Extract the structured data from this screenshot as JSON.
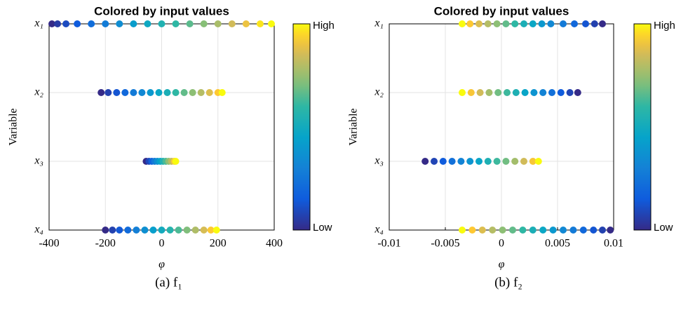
{
  "chart_data": [
    {
      "type": "scatter",
      "title": "Colored by input values",
      "xlabel": "φ",
      "ylabel": "Variable",
      "caption": "(a) f₁",
      "categories": [
        "x₁",
        "x₂",
        "x₃",
        "x₄"
      ],
      "xlim": [
        -400,
        400
      ],
      "xticks": [
        -400,
        -200,
        0,
        200,
        400
      ],
      "grid": true,
      "colormap": "parula",
      "colorbar_labels": [
        "High",
        "Low"
      ],
      "rows": [
        {
          "values": [
            -390,
            -370,
            -340,
            -300,
            -250,
            -200,
            -150,
            -100,
            -50,
            0,
            50,
            100,
            150,
            200,
            250,
            300,
            350,
            390
          ],
          "c": [
            0,
            0.05,
            0.1,
            0.15,
            0.22,
            0.28,
            0.35,
            0.42,
            0.48,
            0.55,
            0.6,
            0.66,
            0.72,
            0.78,
            0.85,
            0.9,
            0.97,
            1
          ]
        },
        {
          "values": [
            -215,
            -190,
            -160,
            -130,
            -100,
            -70,
            -40,
            -10,
            20,
            50,
            80,
            110,
            140,
            170,
            200,
            215
          ],
          "c": [
            0,
            0.07,
            0.13,
            0.2,
            0.27,
            0.33,
            0.4,
            0.47,
            0.53,
            0.6,
            0.67,
            0.73,
            0.8,
            0.87,
            0.93,
            1
          ]
        },
        {
          "values": [
            -55,
            -45,
            -35,
            -25,
            -15,
            -5,
            5,
            15,
            25,
            35,
            45,
            50
          ],
          "c": [
            0,
            0.09,
            0.18,
            0.27,
            0.36,
            0.45,
            0.55,
            0.64,
            0.73,
            0.82,
            0.91,
            1
          ]
        },
        {
          "values": [
            -200,
            -175,
            -150,
            -120,
            -90,
            -60,
            -30,
            0,
            30,
            60,
            90,
            120,
            150,
            175,
            195
          ],
          "c": [
            0,
            0.07,
            0.14,
            0.21,
            0.29,
            0.36,
            0.43,
            0.5,
            0.57,
            0.64,
            0.71,
            0.79,
            0.86,
            0.93,
            1
          ]
        }
      ]
    },
    {
      "type": "scatter",
      "title": "Colored by input values",
      "xlabel": "φ",
      "ylabel": "Variable",
      "caption": "(b) f₂",
      "categories": [
        "x₁",
        "x₂",
        "x₃",
        "x₄"
      ],
      "xlim": [
        -0.01,
        0.01
      ],
      "xticks": [
        -0.01,
        -0.005,
        0,
        0.005,
        0.01
      ],
      "grid": true,
      "colormap": "parula",
      "colorbar_labels": [
        "High",
        "Low"
      ],
      "rows": [
        {
          "values": [
            -0.0035,
            -0.0028,
            -0.002,
            -0.0012,
            -0.0004,
            0.0004,
            0.0012,
            0.002,
            0.0028,
            0.0036,
            0.0044,
            0.0055,
            0.0065,
            0.0075,
            0.0083,
            0.009
          ],
          "c": [
            1,
            0.93,
            0.87,
            0.8,
            0.73,
            0.67,
            0.6,
            0.53,
            0.47,
            0.4,
            0.33,
            0.27,
            0.2,
            0.13,
            0.07,
            0
          ]
        },
        {
          "values": [
            -0.0035,
            -0.0027,
            -0.0019,
            -0.0011,
            -0.0003,
            0.0005,
            0.0013,
            0.0021,
            0.0029,
            0.0037,
            0.0045,
            0.0053,
            0.0061,
            0.0068
          ],
          "c": [
            1,
            0.92,
            0.85,
            0.77,
            0.69,
            0.62,
            0.54,
            0.46,
            0.38,
            0.31,
            0.23,
            0.15,
            0.08,
            0
          ]
        },
        {
          "values": [
            -0.0068,
            -0.006,
            -0.0052,
            -0.0044,
            -0.0036,
            -0.0028,
            -0.002,
            -0.0012,
            -0.0004,
            0.0004,
            0.0012,
            0.002,
            0.0028,
            0.0033
          ],
          "c": [
            0,
            0.08,
            0.15,
            0.23,
            0.31,
            0.38,
            0.46,
            0.54,
            0.62,
            0.69,
            0.77,
            0.85,
            0.92,
            1
          ]
        },
        {
          "values": [
            -0.0035,
            -0.0026,
            -0.0017,
            -0.0008,
            0.0001,
            0.001,
            0.0019,
            0.0028,
            0.0037,
            0.0046,
            0.0055,
            0.0064,
            0.0073,
            0.0082,
            0.009,
            0.0097
          ],
          "c": [
            1,
            0.93,
            0.87,
            0.8,
            0.73,
            0.67,
            0.6,
            0.53,
            0.47,
            0.4,
            0.33,
            0.27,
            0.2,
            0.13,
            0.07,
            0
          ]
        }
      ]
    }
  ]
}
